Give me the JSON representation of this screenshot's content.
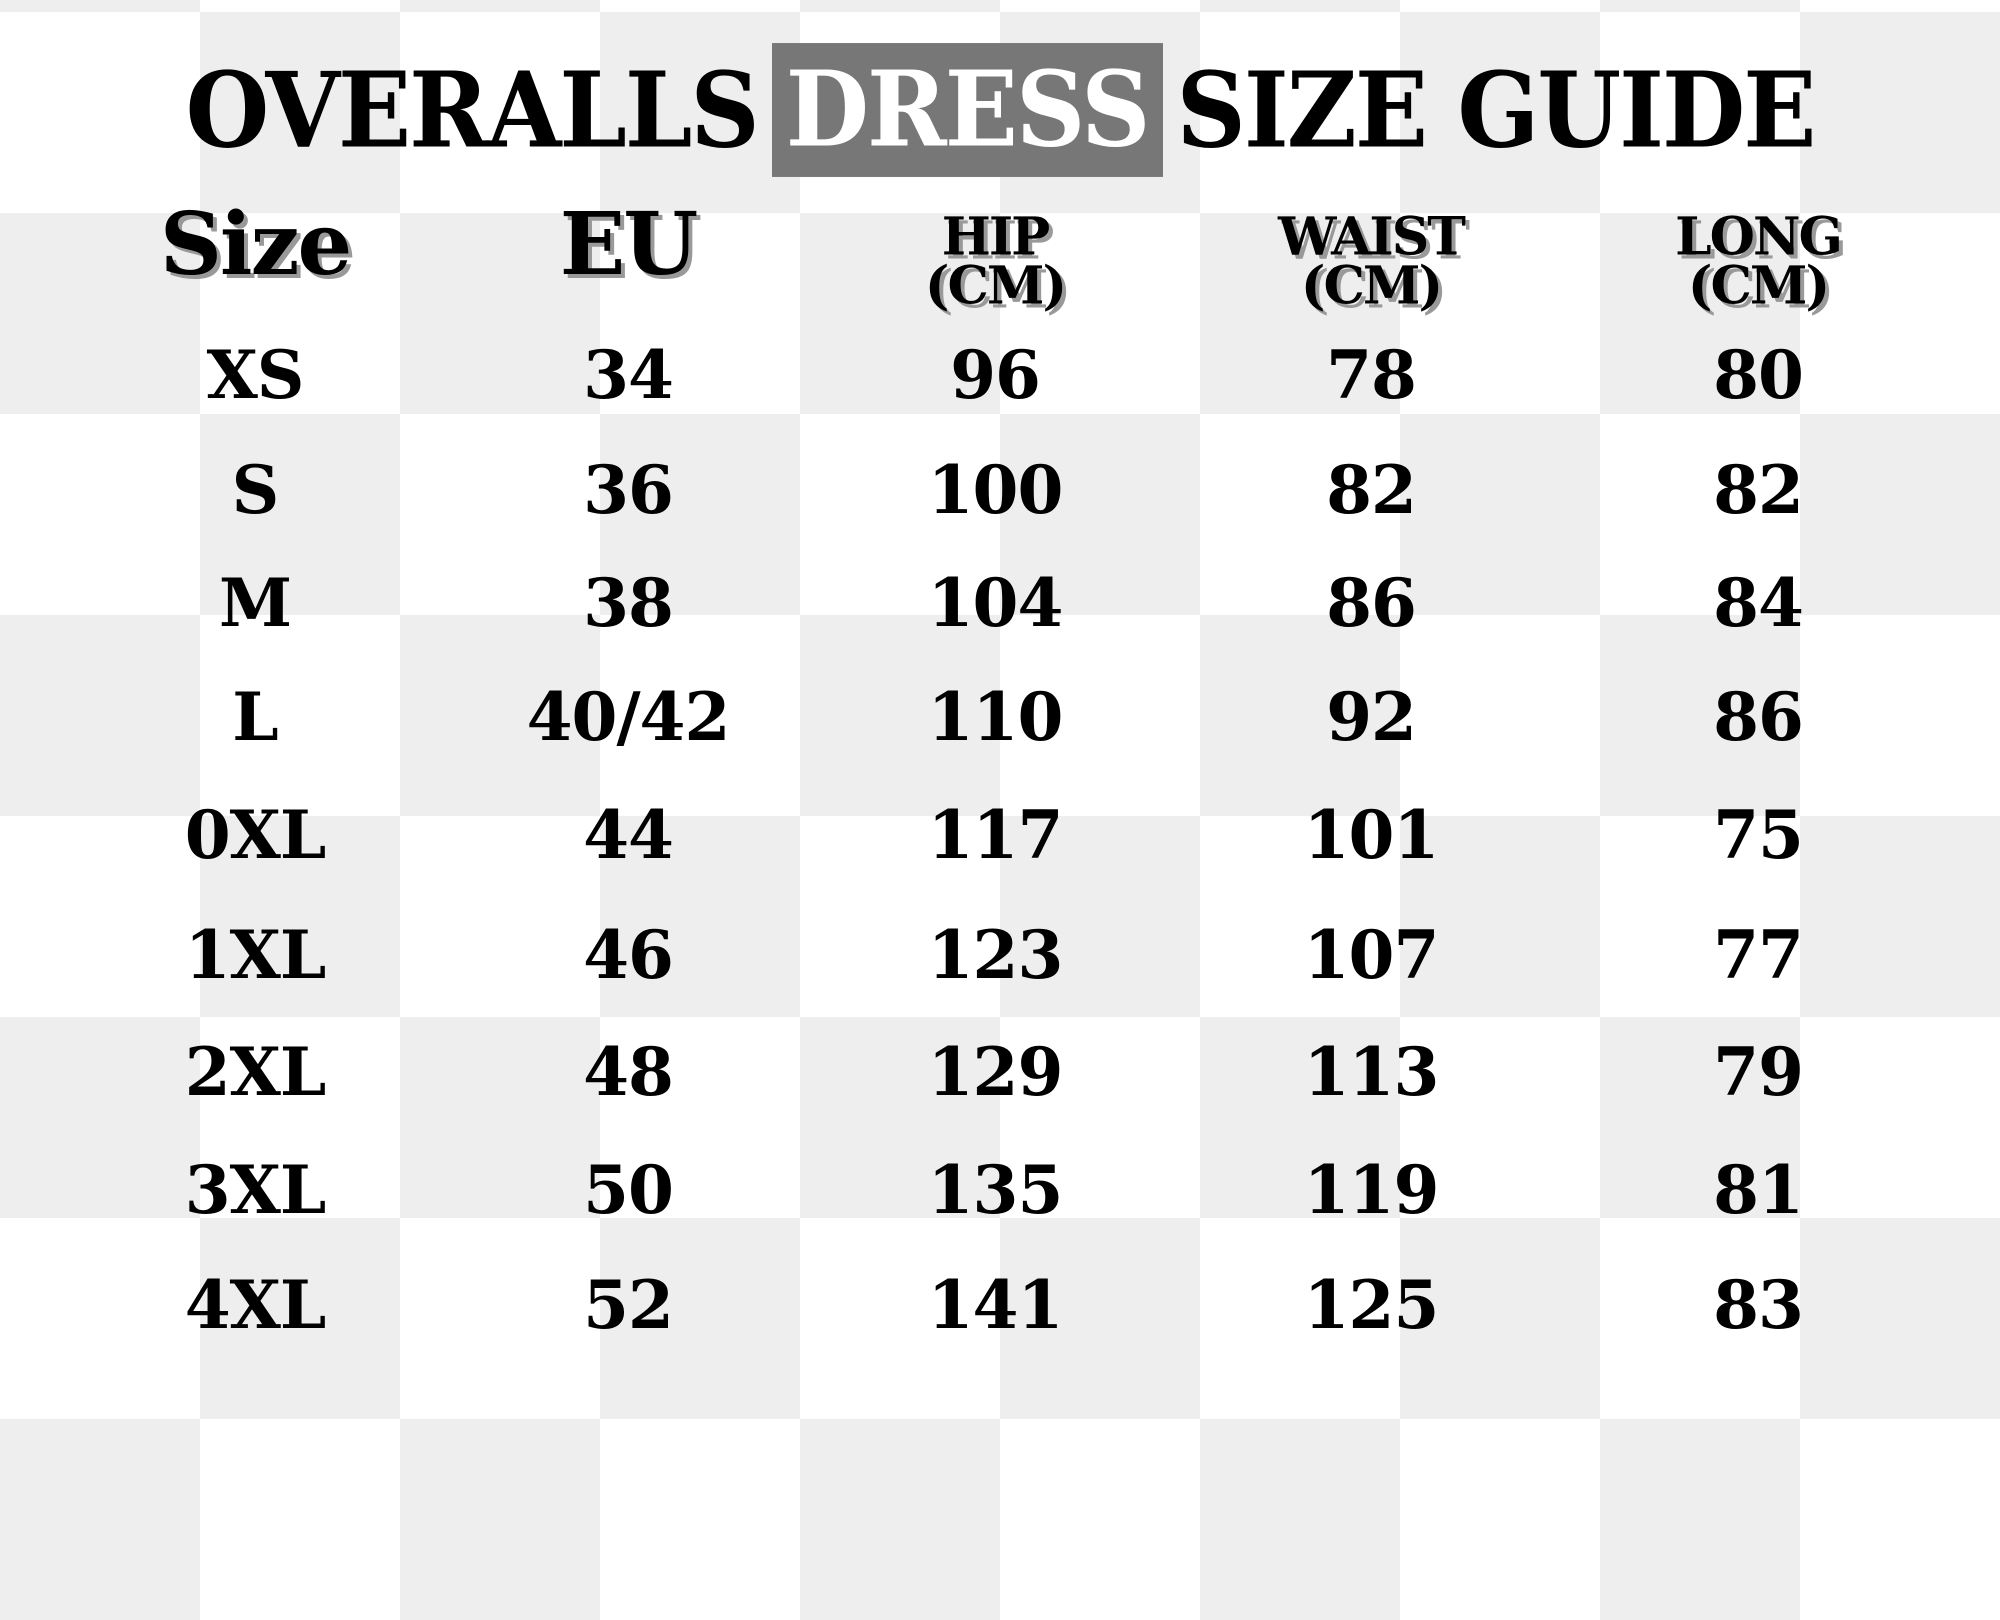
{
  "title": {
    "part1": "OVERALLS",
    "highlight": "DRESS",
    "part2": "SIZE GUIDE"
  },
  "colors": {
    "highlight_box": "#777777",
    "checker_light": "#eeeeee",
    "checker_white": "#ffffff",
    "text": "#000000"
  },
  "table": {
    "headers": [
      {
        "line1": "Size",
        "line2": ""
      },
      {
        "line1": "EU",
        "line2": ""
      },
      {
        "line1": "HIP",
        "line2": "(CM)"
      },
      {
        "line1": "WAIST",
        "line2": "(CM)"
      },
      {
        "line1": "LONG",
        "line2": "(CM)"
      }
    ],
    "rows": [
      [
        "XS",
        "34",
        "96",
        "78",
        "80"
      ],
      [
        "S",
        "36",
        "100",
        "82",
        "82"
      ],
      [
        "M",
        "38",
        "104",
        "86",
        "84"
      ],
      [
        "L",
        "40/42",
        "110",
        "92",
        "86"
      ],
      [
        "0XL",
        "44",
        "117",
        "101",
        "75"
      ],
      [
        "1XL",
        "46",
        "123",
        "107",
        "77"
      ],
      [
        "2XL",
        "48",
        "129",
        "113",
        "79"
      ],
      [
        "3XL",
        "50",
        "135",
        "119",
        "81"
      ],
      [
        "4XL",
        "52",
        "141",
        "125",
        "83"
      ]
    ]
  }
}
